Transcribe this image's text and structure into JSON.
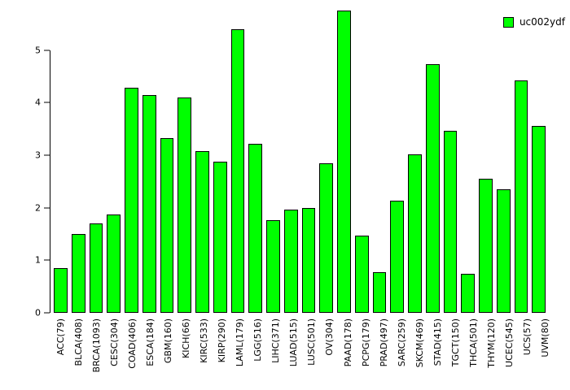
{
  "chart_data": {
    "type": "bar",
    "title": "",
    "xlabel": "",
    "ylabel": "",
    "legend": "uc002ydf",
    "legend_position": "top-right",
    "grid": false,
    "bar_color": "#00FF00",
    "bar_border_color": "#000000",
    "ylim": [
      0,
      5.8
    ],
    "yticks": [
      0,
      1,
      2,
      3,
      4,
      5
    ],
    "categories": [
      "ACC(79)",
      "BLCA(408)",
      "BRCA(1093)",
      "CESC(304)",
      "COAD(406)",
      "ESCA(184)",
      "GBM(160)",
      "KICH(66)",
      "KIRC(533)",
      "KIRP(290)",
      "LAML(179)",
      "LGG(516)",
      "LIHC(371)",
      "LUAD(515)",
      "LUSC(501)",
      "OV(304)",
      "PAAD(178)",
      "PCPG(179)",
      "PRAD(497)",
      "SARC(259)",
      "SKCM(469)",
      "STAD(415)",
      "TGCT(150)",
      "THCA(501)",
      "THYM(120)",
      "UCEC(545)",
      "UCS(57)",
      "UVM(80)"
    ],
    "values": [
      0.85,
      1.5,
      1.7,
      1.87,
      4.28,
      4.15,
      3.33,
      4.1,
      3.08,
      2.87,
      5.4,
      3.22,
      1.77,
      1.97,
      2.0,
      2.84,
      5.75,
      1.47,
      0.77,
      2.13,
      3.02,
      4.73,
      3.47,
      0.74,
      2.55,
      2.35,
      4.42,
      3.55
    ]
  }
}
